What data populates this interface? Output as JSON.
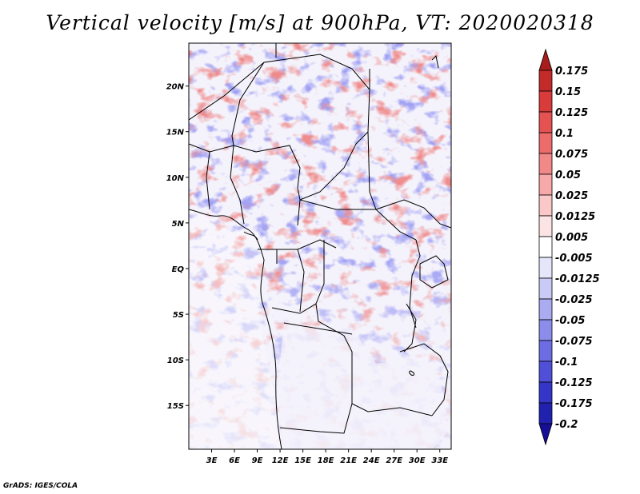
{
  "title": "Vertical velocity [m/s] at 900hPa, VT: 2020020318",
  "credit": "GrADS: IGES/COLA",
  "map": {
    "lat_labels": [
      "20N",
      "15N",
      "10N",
      "5N",
      "EQ",
      "5S",
      "10S",
      "15S"
    ],
    "lat_values": [
      20,
      15,
      10,
      5,
      0,
      -5,
      -10,
      -15
    ],
    "lon_labels": [
      "3E",
      "6E",
      "9E",
      "12E",
      "15E",
      "18E",
      "21E",
      "24E",
      "27E",
      "30E",
      "33E"
    ],
    "lon_values": [
      3,
      6,
      9,
      12,
      15,
      18,
      21,
      24,
      27,
      30,
      33
    ],
    "lon_range": [
      0,
      34.5
    ],
    "lat_range": [
      -19.8,
      24.7
    ]
  },
  "colorbar": {
    "labels": [
      "0.175",
      "0.15",
      "0.125",
      "0.1",
      "0.075",
      "0.05",
      "0.025",
      "0.0125",
      "0.005",
      "-0.005",
      "-0.0125",
      "-0.025",
      "-0.05",
      "-0.075",
      "-0.1",
      "-0.125",
      "-0.175",
      "-0.2"
    ],
    "colors": [
      "#a81c1c",
      "#c32a2a",
      "#d93b3b",
      "#e45252",
      "#ec6c6c",
      "#f28989",
      "#f7a8a8",
      "#fbc8c8",
      "#fde4e4",
      "#ffffff",
      "#e6e6fb",
      "#cacaf6",
      "#ababf1",
      "#8c8ceb",
      "#6d6de3",
      "#4f4fd8",
      "#3535c8",
      "#2121b0",
      "#140f96"
    ]
  }
}
